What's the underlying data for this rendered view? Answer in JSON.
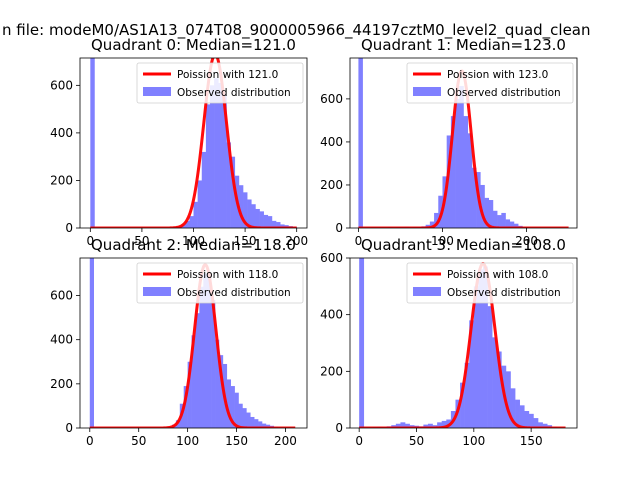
{
  "figure": {
    "suptitle": "n file: modeM0/AS1A13_074T08_9000005966_44197cztM0_level2_quad_clean"
  },
  "colors": {
    "histogram": "#8080ff",
    "poisson": "#ff0000"
  },
  "chart_data": [
    {
      "type": "bar+line",
      "title": "Quadrant 0: Median=121.0",
      "xlim": [
        -10,
        210
      ],
      "ylim": [
        0,
        715
      ],
      "xticks": [
        0,
        50,
        100,
        150,
        200
      ],
      "yticks": [
        0,
        200,
        400,
        600
      ],
      "legend": {
        "placement": "upper-right",
        "poisson_label": "Poission with 121.0",
        "hist_label": "Observed distribution"
      },
      "poisson": {
        "mean": 121.0,
        "peak": 730,
        "x_range": [
          0,
          200
        ]
      },
      "histogram": {
        "bins": [
          [
            0,
            4,
            715
          ],
          [
            4,
            8,
            0
          ],
          [
            8,
            12,
            0
          ],
          [
            12,
            16,
            0
          ],
          [
            16,
            20,
            0
          ],
          [
            20,
            24,
            0
          ],
          [
            24,
            28,
            0
          ],
          [
            28,
            32,
            0
          ],
          [
            32,
            36,
            0
          ],
          [
            36,
            40,
            0
          ],
          [
            40,
            44,
            0
          ],
          [
            44,
            48,
            0
          ],
          [
            48,
            52,
            0
          ],
          [
            52,
            56,
            0
          ],
          [
            56,
            60,
            0
          ],
          [
            60,
            64,
            0
          ],
          [
            64,
            68,
            0
          ],
          [
            68,
            72,
            0
          ],
          [
            72,
            76,
            0
          ],
          [
            76,
            80,
            0
          ],
          [
            80,
            84,
            5
          ],
          [
            84,
            88,
            8
          ],
          [
            88,
            92,
            15
          ],
          [
            92,
            96,
            30
          ],
          [
            96,
            100,
            50
          ],
          [
            100,
            104,
            110
          ],
          [
            104,
            108,
            200
          ],
          [
            108,
            112,
            320
          ],
          [
            112,
            116,
            520
          ],
          [
            116,
            120,
            600
          ],
          [
            120,
            124,
            630
          ],
          [
            124,
            128,
            610
          ],
          [
            128,
            132,
            560
          ],
          [
            132,
            136,
            360
          ],
          [
            136,
            140,
            300
          ],
          [
            140,
            144,
            220
          ],
          [
            144,
            148,
            180
          ],
          [
            148,
            152,
            150
          ],
          [
            152,
            156,
            120
          ],
          [
            156,
            160,
            100
          ],
          [
            160,
            164,
            80
          ],
          [
            164,
            168,
            70
          ],
          [
            168,
            172,
            55
          ],
          [
            172,
            176,
            50
          ],
          [
            176,
            180,
            30
          ],
          [
            180,
            184,
            25
          ],
          [
            184,
            188,
            15
          ],
          [
            188,
            192,
            12
          ],
          [
            192,
            196,
            8
          ],
          [
            196,
            200,
            5
          ]
        ]
      }
    },
    {
      "type": "bar+line",
      "title": "Quadrant 1: Median=123.0",
      "xlim": [
        -10,
        260
      ],
      "ylim": [
        0,
        790
      ],
      "xticks": [
        0,
        100,
        200
      ],
      "yticks": [
        0,
        200,
        400,
        600
      ],
      "legend": {
        "placement": "upper-right",
        "poisson_label": "Poission with 123.0",
        "hist_label": "Observed distribution"
      },
      "poisson": {
        "mean": 123.0,
        "peak": 730,
        "x_range": [
          0,
          250
        ]
      },
      "histogram": {
        "bins": [
          [
            0,
            5,
            790
          ],
          [
            5,
            10,
            0
          ],
          [
            10,
            15,
            0
          ],
          [
            15,
            20,
            3
          ],
          [
            20,
            25,
            2
          ],
          [
            25,
            30,
            3
          ],
          [
            30,
            35,
            2
          ],
          [
            35,
            40,
            5
          ],
          [
            40,
            45,
            3
          ],
          [
            45,
            50,
            4
          ],
          [
            50,
            55,
            5
          ],
          [
            55,
            60,
            6
          ],
          [
            60,
            65,
            3
          ],
          [
            65,
            70,
            5
          ],
          [
            70,
            75,
            4
          ],
          [
            75,
            80,
            8
          ],
          [
            80,
            85,
            15
          ],
          [
            85,
            90,
            30
          ],
          [
            90,
            95,
            70
          ],
          [
            95,
            100,
            150
          ],
          [
            100,
            105,
            240
          ],
          [
            105,
            110,
            430
          ],
          [
            110,
            115,
            520
          ],
          [
            115,
            120,
            600
          ],
          [
            120,
            125,
            660
          ],
          [
            125,
            130,
            520
          ],
          [
            130,
            135,
            440
          ],
          [
            135,
            140,
            280
          ],
          [
            140,
            145,
            260
          ],
          [
            145,
            150,
            200
          ],
          [
            150,
            155,
            140
          ],
          [
            155,
            160,
            130
          ],
          [
            160,
            165,
            80
          ],
          [
            165,
            170,
            60
          ],
          [
            170,
            175,
            70
          ],
          [
            175,
            180,
            40
          ],
          [
            180,
            185,
            30
          ],
          [
            185,
            190,
            20
          ],
          [
            190,
            195,
            10
          ],
          [
            195,
            200,
            5
          ]
        ]
      }
    },
    {
      "type": "bar+line",
      "title": "Quadrant 2: Median=118.0",
      "xlim": [
        -10,
        222
      ],
      "ylim": [
        0,
        770
      ],
      "xticks": [
        0,
        50,
        100,
        150,
        200
      ],
      "yticks": [
        0,
        200,
        400,
        600
      ],
      "legend": {
        "placement": "upper-right",
        "poisson_label": "Poission with 118.0",
        "hist_label": "Observed distribution"
      },
      "poisson": {
        "mean": 118.0,
        "peak": 740,
        "x_range": [
          0,
          210
        ]
      },
      "histogram": {
        "bins": [
          [
            0,
            4,
            770
          ],
          [
            4,
            8,
            0
          ],
          [
            8,
            12,
            0
          ],
          [
            12,
            16,
            0
          ],
          [
            16,
            20,
            0
          ],
          [
            20,
            24,
            0
          ],
          [
            24,
            28,
            0
          ],
          [
            28,
            32,
            0
          ],
          [
            32,
            36,
            0
          ],
          [
            36,
            40,
            0
          ],
          [
            40,
            44,
            0
          ],
          [
            44,
            48,
            0
          ],
          [
            48,
            52,
            0
          ],
          [
            52,
            56,
            0
          ],
          [
            56,
            60,
            0
          ],
          [
            60,
            64,
            0
          ],
          [
            64,
            68,
            0
          ],
          [
            68,
            72,
            0
          ],
          [
            72,
            76,
            0
          ],
          [
            76,
            80,
            0
          ],
          [
            80,
            84,
            6
          ],
          [
            84,
            88,
            15
          ],
          [
            88,
            92,
            35
          ],
          [
            92,
            96,
            110
          ],
          [
            96,
            100,
            190
          ],
          [
            100,
            104,
            300
          ],
          [
            104,
            108,
            420
          ],
          [
            108,
            112,
            520
          ],
          [
            112,
            116,
            640
          ],
          [
            116,
            120,
            700
          ],
          [
            120,
            124,
            690
          ],
          [
            124,
            128,
            580
          ],
          [
            128,
            132,
            400
          ],
          [
            132,
            136,
            330
          ],
          [
            136,
            140,
            290
          ],
          [
            140,
            144,
            220
          ],
          [
            144,
            148,
            190
          ],
          [
            148,
            152,
            160
          ],
          [
            152,
            156,
            110
          ],
          [
            156,
            160,
            90
          ],
          [
            160,
            164,
            70
          ],
          [
            164,
            168,
            50
          ],
          [
            168,
            172,
            40
          ],
          [
            172,
            176,
            30
          ],
          [
            176,
            180,
            20
          ],
          [
            180,
            184,
            15
          ],
          [
            184,
            188,
            10
          ],
          [
            188,
            192,
            6
          ],
          [
            192,
            196,
            3
          ]
        ]
      }
    },
    {
      "type": "bar+line",
      "title": "Quadrant 3: Median=108.0",
      "xlim": [
        -8,
        190
      ],
      "ylim": [
        0,
        600
      ],
      "xticks": [
        0,
        50,
        100,
        150
      ],
      "yticks": [
        0,
        200,
        400,
        600
      ],
      "legend": {
        "placement": "upper-right",
        "poisson_label": "Poission with 108.0",
        "hist_label": "Observed distribution"
      },
      "poisson": {
        "mean": 108.0,
        "peak": 580,
        "x_range": [
          0,
          180
        ]
      },
      "histogram": {
        "bins": [
          [
            0,
            4,
            600
          ],
          [
            4,
            8,
            0
          ],
          [
            8,
            12,
            0
          ],
          [
            12,
            16,
            3
          ],
          [
            16,
            20,
            5
          ],
          [
            20,
            24,
            4
          ],
          [
            24,
            28,
            6
          ],
          [
            28,
            32,
            10
          ],
          [
            32,
            36,
            15
          ],
          [
            36,
            40,
            20
          ],
          [
            40,
            44,
            15
          ],
          [
            44,
            48,
            10
          ],
          [
            48,
            52,
            8
          ],
          [
            52,
            56,
            6
          ],
          [
            56,
            60,
            12
          ],
          [
            60,
            64,
            15
          ],
          [
            64,
            68,
            10
          ],
          [
            68,
            72,
            20
          ],
          [
            72,
            76,
            25
          ],
          [
            76,
            80,
            30
          ],
          [
            80,
            84,
            60
          ],
          [
            84,
            88,
            100
          ],
          [
            88,
            92,
            160
          ],
          [
            92,
            96,
            230
          ],
          [
            96,
            100,
            380
          ],
          [
            100,
            104,
            500
          ],
          [
            104,
            108,
            560
          ],
          [
            108,
            112,
            570
          ],
          [
            112,
            116,
            430
          ],
          [
            116,
            120,
            320
          ],
          [
            120,
            124,
            270
          ],
          [
            124,
            128,
            220
          ],
          [
            128,
            132,
            200
          ],
          [
            132,
            136,
            140
          ],
          [
            136,
            140,
            100
          ],
          [
            140,
            144,
            80
          ],
          [
            144,
            148,
            60
          ],
          [
            148,
            152,
            50
          ],
          [
            152,
            156,
            35
          ],
          [
            156,
            160,
            20
          ],
          [
            160,
            164,
            15
          ],
          [
            164,
            168,
            10
          ],
          [
            168,
            172,
            5
          ]
        ]
      }
    }
  ]
}
